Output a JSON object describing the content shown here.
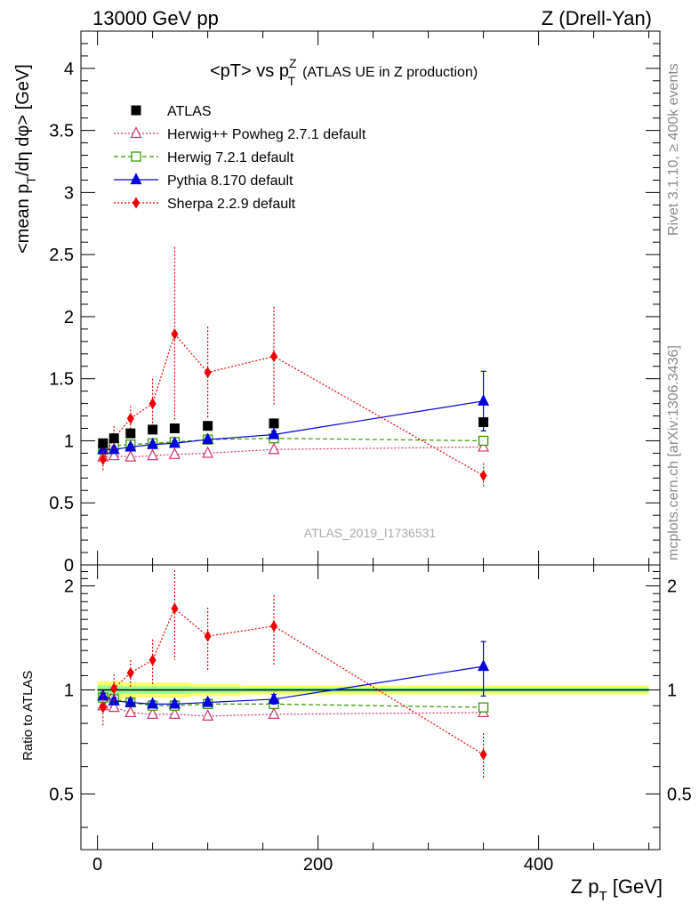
{
  "header": {
    "left": "13000 GeV pp",
    "right": "Z (Drell-Yan)"
  },
  "side": {
    "rivet": "Rivet 3.1.10, ≥ 400k events",
    "mcplots": "mcplots.cern.ch [arXiv:1306.3436]"
  },
  "watermark": "ATLAS_2019_I1736531",
  "colors": {
    "atlas": "#000000",
    "herwigpp": "#cc3366",
    "herwig7": "#339900",
    "pythia": "#0000dd",
    "sherpa": "#ee0000",
    "band_outer": "#ffff66",
    "band_inner": "#99ff99"
  },
  "chart_data": [
    {
      "type": "line",
      "title_main": "<pT> vs p",
      "title_sup": "Z",
      "title_sub": "T",
      "title_tail": "(ATLAS UE in Z production)",
      "ylabel_main": "<mean p",
      "ylabel_sub1": "T",
      "ylabel_mid": "/dη dφ> [GeV]",
      "xlim": [
        -15,
        510
      ],
      "ylim": [
        0,
        4.3
      ],
      "yticks": [
        0,
        0.5,
        1,
        1.5,
        2,
        2.5,
        3,
        3.5,
        4
      ],
      "ytick_labels": [
        "0",
        "0.5",
        "1",
        "1.5",
        "2",
        "2.5",
        "3",
        "3.5",
        "4"
      ],
      "x": [
        5,
        15,
        30,
        50,
        70,
        100,
        160,
        350
      ],
      "series": [
        {
          "key": "atlas",
          "name": "ATLAS",
          "values": [
            0.98,
            1.02,
            1.06,
            1.09,
            1.1,
            1.12,
            1.14,
            1.15
          ],
          "err": [
            0,
            0,
            0,
            0,
            0,
            0,
            0,
            0
          ],
          "marker": "square",
          "style": "none"
        },
        {
          "key": "herwigpp",
          "name": "Herwig++ Powheg 2.7.1 default",
          "values": [
            0.87,
            0.88,
            0.87,
            0.88,
            0.89,
            0.9,
            0.93,
            0.95
          ],
          "err": [
            0,
            0,
            0,
            0,
            0,
            0,
            0,
            0
          ],
          "marker": "triangle-open",
          "style": "dotted"
        },
        {
          "key": "herwig7",
          "name": "Herwig 7.2.1 default",
          "values": [
            0.93,
            0.96,
            0.97,
            0.98,
            0.99,
            1.01,
            1.02,
            1.0
          ],
          "err": [
            0,
            0,
            0,
            0,
            0,
            0,
            0,
            0
          ],
          "marker": "square-open",
          "style": "dashed"
        },
        {
          "key": "pythia",
          "name": "Pythia 8.170 default",
          "values": [
            0.93,
            0.93,
            0.95,
            0.97,
            0.98,
            1.01,
            1.05,
            1.32
          ],
          "err": [
            0.02,
            0.02,
            0.02,
            0.02,
            0.02,
            0.02,
            0.03,
            0.24
          ],
          "marker": "triangle",
          "style": "solid"
        },
        {
          "key": "sherpa",
          "name": "Sherpa 2.2.9 default",
          "values": [
            0.85,
            1.02,
            1.18,
            1.3,
            1.86,
            1.55,
            1.68,
            0.72
          ],
          "err": [
            0.1,
            0.1,
            0.1,
            0.2,
            0.7,
            0.37,
            0.4,
            0.1
          ],
          "marker": "diamond",
          "style": "dotted"
        }
      ]
    },
    {
      "type": "line",
      "ylabel": "Ratio to ATLAS",
      "xlabel_main": "Z p",
      "xlabel_sub": "T",
      "xlabel_tail": " [GeV]",
      "xlim": [
        -15,
        510
      ],
      "ylim_log": [
        0.345,
        2.3
      ],
      "yticks": [
        0.5,
        1,
        2
      ],
      "ytick_labels": [
        "0.5",
        "1",
        "2"
      ],
      "xticks": [
        0,
        200,
        400
      ],
      "xtick_labels": [
        "0",
        "200",
        "400"
      ],
      "x": [
        5,
        15,
        30,
        50,
        70,
        100,
        160,
        350
      ],
      "band_halfwidth": [
        0.06,
        0.06,
        0.05,
        0.05,
        0.05,
        0.04,
        0.03,
        0.03
      ],
      "series": [
        {
          "key": "herwigpp",
          "values": [
            0.9,
            0.89,
            0.86,
            0.85,
            0.85,
            0.84,
            0.85,
            0.86
          ],
          "err": [
            0,
            0,
            0,
            0,
            0,
            0,
            0,
            0
          ],
          "marker": "triangle-open",
          "style": "dotted"
        },
        {
          "key": "herwig7",
          "values": [
            0.95,
            0.94,
            0.92,
            0.9,
            0.9,
            0.91,
            0.91,
            0.89
          ],
          "err": [
            0,
            0,
            0,
            0,
            0,
            0,
            0,
            0
          ],
          "marker": "square-open",
          "style": "dashed"
        },
        {
          "key": "pythia",
          "values": [
            0.96,
            0.93,
            0.92,
            0.91,
            0.91,
            0.92,
            0.94,
            1.17
          ],
          "err": [
            0.02,
            0.02,
            0.02,
            0.02,
            0.02,
            0.02,
            0.03,
            0.21
          ],
          "marker": "triangle",
          "style": "solid"
        },
        {
          "key": "sherpa",
          "values": [
            0.89,
            1.01,
            1.12,
            1.22,
            1.72,
            1.43,
            1.53,
            0.65
          ],
          "err": [
            0.1,
            0.1,
            0.1,
            0.18,
            0.5,
            0.3,
            0.35,
            0.1
          ],
          "marker": "diamond",
          "style": "dotted"
        }
      ]
    }
  ]
}
